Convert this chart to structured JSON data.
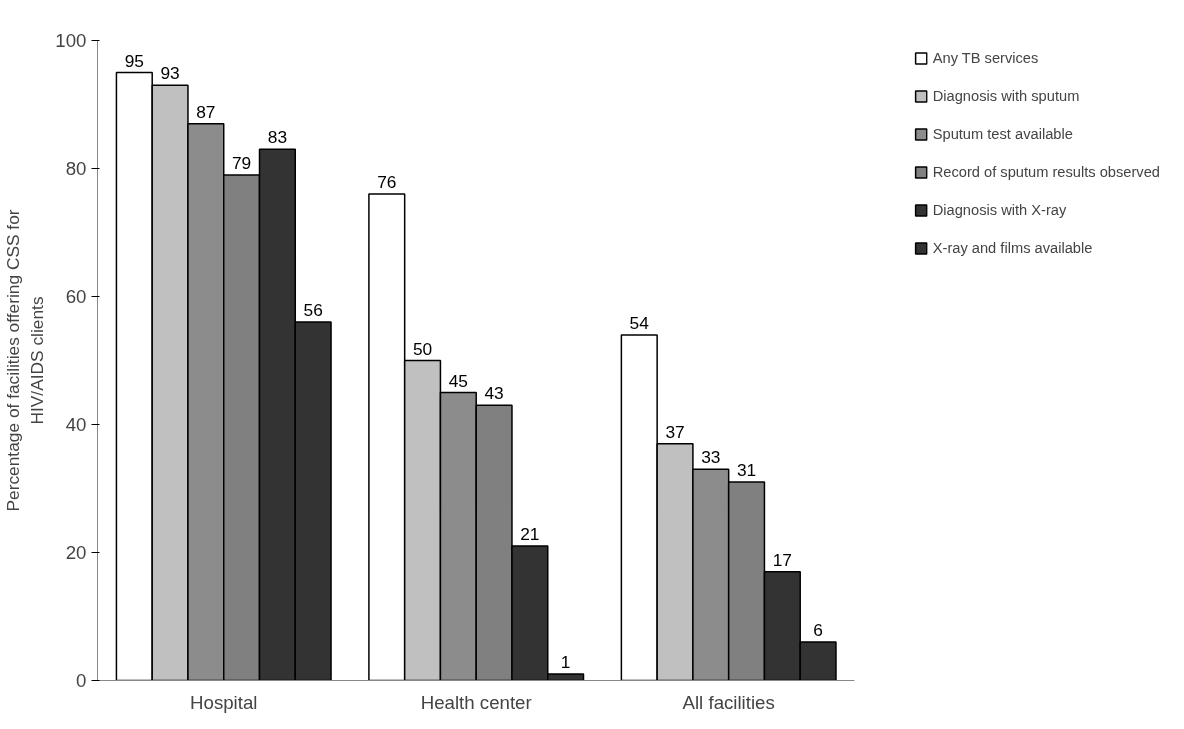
{
  "chart_data": {
    "type": "bar",
    "ylabel": "Percentage of facilities offering CSS for\nHIV/AIDS clients",
    "categories": [
      "Hospital",
      "Health center",
      "All facilities"
    ],
    "series": [
      {
        "name": "Any TB services",
        "color": "#ffffff",
        "values": [
          95,
          76,
          54
        ]
      },
      {
        "name": "Diagnosis with sputum",
        "color": "#c0c0c0",
        "values": [
          93,
          50,
          37
        ]
      },
      {
        "name": "Sputum test available",
        "color": "#8c8c8c",
        "values": [
          87,
          45,
          33
        ]
      },
      {
        "name": "Record of sputum results observed",
        "color": "#808080",
        "values": [
          79,
          43,
          31
        ]
      },
      {
        "name": "Diagnosis with X-ray",
        "color": "#333333",
        "values": [
          83,
          21,
          17
        ]
      },
      {
        "name": "X-ray and films available",
        "color": "#333333",
        "values": [
          56,
          1,
          6
        ]
      }
    ],
    "ylim": [
      0,
      100
    ],
    "yticks": [
      0,
      20,
      40,
      60,
      80,
      100
    ],
    "grid": false,
    "legend": "right",
    "data_labels": true
  }
}
